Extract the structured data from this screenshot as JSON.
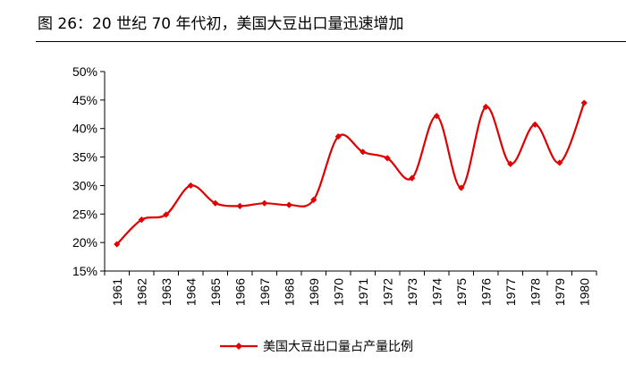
{
  "figure": {
    "title": "图 26：20 世纪 70 年代初，美国大豆出口量迅速增加"
  },
  "chart_data": {
    "type": "line",
    "title": "图 26：20 世纪 70 年代初，美国大豆出口量迅速增加",
    "x": [
      "1961",
      "1962",
      "1963",
      "1964",
      "1965",
      "1966",
      "1967",
      "1968",
      "1969",
      "1970",
      "1971",
      "1972",
      "1973",
      "1974",
      "1975",
      "1976",
      "1977",
      "1978",
      "1979",
      "1980"
    ],
    "series": [
      {
        "name": "美国大豆出口量占产量比例",
        "color": "#e00000",
        "values": [
          19.7,
          24.0,
          24.9,
          30.0,
          26.9,
          26.4,
          26.9,
          26.6,
          27.5,
          38.6,
          35.9,
          34.8,
          31.3,
          42.2,
          29.6,
          43.8,
          33.8,
          40.7,
          34.0,
          44.5
        ]
      }
    ],
    "ylim": [
      15,
      50
    ],
    "yticks": [
      "15%",
      "20%",
      "25%",
      "30%",
      "35%",
      "40%",
      "45%",
      "50%"
    ],
    "ytick_values": [
      15,
      20,
      25,
      30,
      35,
      40,
      45,
      50
    ],
    "xlabel": "",
    "ylabel": "",
    "grid": false,
    "legend_position": "bottom-center",
    "smooth": true
  }
}
